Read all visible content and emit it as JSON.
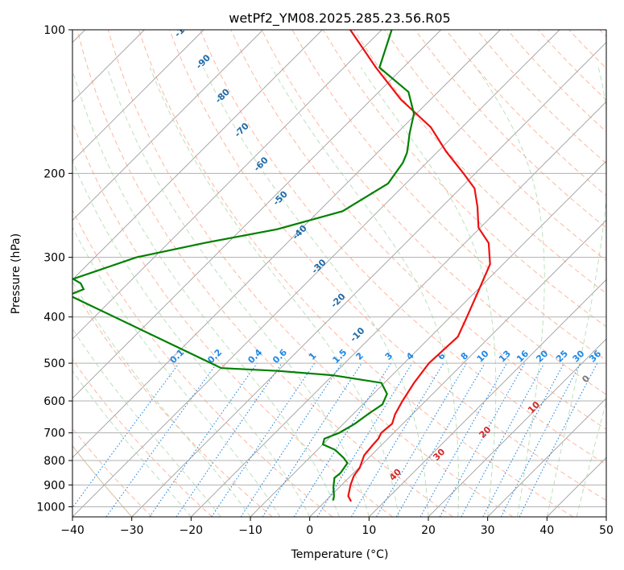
{
  "chart_data": {
    "type": "line",
    "chart_kind": "skew-T log-P sounding",
    "title": "wetPf2_YM08.2025.285.23.56.R05",
    "xlabel": "Temperature (°C)",
    "ylabel": "Pressure (hPa)",
    "xlim": [
      -40,
      50
    ],
    "ylim": [
      1050,
      100
    ],
    "y_scale": "log",
    "x_ticks": [
      -40,
      -30,
      -20,
      -10,
      0,
      10,
      20,
      30,
      40,
      50
    ],
    "y_ticks": [
      100,
      200,
      300,
      400,
      500,
      600,
      700,
      800,
      900,
      1000
    ],
    "grid": true,
    "background_lines": {
      "isotherms_skewed": {
        "color": "#9e9e9e"
      },
      "dry_adiabats": {
        "color": "#ff9470"
      },
      "moist_adiabats": {
        "color": "#a8d8a8"
      },
      "saturation_vapor_pressure": {
        "color": "#d2b48c"
      },
      "mixing_ratio": {
        "color": "#1e88e5"
      }
    },
    "mixing_ratio_labels": [
      "0.1",
      "0.2",
      "0.4",
      "0.6",
      "1",
      "1.5",
      "2",
      "3",
      "4",
      "6",
      "8",
      "10",
      "13",
      "16",
      "20",
      "25",
      "30",
      "36"
    ],
    "theta_labels": [
      "-100",
      "-90",
      "-80",
      "-70",
      "-60",
      "-50",
      "-40",
      "-30",
      "-20",
      "-10"
    ],
    "annotation_labels": [
      "0",
      "10",
      "20",
      "30",
      "40"
    ],
    "series": [
      {
        "name": "",
        "role": "temperature",
        "color": "#ee1111",
        "points": [
          [
            4.4,
            975
          ],
          [
            3.0,
            950
          ],
          [
            1.5,
            900
          ],
          [
            0.5,
            860
          ],
          [
            0.2,
            830
          ],
          [
            -1.2,
            780
          ],
          [
            -1.5,
            740
          ],
          [
            -1.6,
            720
          ],
          [
            -2.1,
            700
          ],
          [
            -1.8,
            670
          ],
          [
            -2.9,
            640
          ],
          [
            -3.9,
            600
          ],
          [
            -5.0,
            550
          ],
          [
            -5.8,
            500
          ],
          [
            -5.4,
            440
          ],
          [
            -7.2,
            400
          ],
          [
            -9.8,
            350
          ],
          [
            -12.2,
            310
          ],
          [
            -16.0,
            280
          ],
          [
            -20.3,
            260
          ],
          [
            -24.0,
            235
          ],
          [
            -27.6,
            215
          ],
          [
            -32.0,
            200
          ],
          [
            -38.6,
            180
          ],
          [
            -45.3,
            160
          ],
          [
            -55.0,
            140
          ],
          [
            -64.6,
            120
          ],
          [
            -75.3,
            100
          ]
        ]
      },
      {
        "name": "",
        "role": "dewpoint",
        "color": "#008000",
        "points": [
          [
            1.2,
            970
          ],
          [
            0.6,
            950
          ],
          [
            -1.0,
            910
          ],
          [
            -2.4,
            870
          ],
          [
            -2.2,
            850
          ],
          [
            -2.7,
            810
          ],
          [
            -4.2,
            790
          ],
          [
            -7.0,
            760
          ],
          [
            -10.0,
            740
          ],
          [
            -10.7,
            720
          ],
          [
            -9.2,
            700
          ],
          [
            -8.1,
            670
          ],
          [
            -7.5,
            640
          ],
          [
            -6.7,
            610
          ],
          [
            -7.7,
            580
          ],
          [
            -10.5,
            550
          ],
          [
            -20.0,
            530
          ],
          [
            -30.0,
            519
          ],
          [
            -40.0,
            512
          ],
          [
            -78.0,
            360
          ],
          [
            -76.5,
            350
          ],
          [
            -78.0,
            340
          ],
          [
            -80.0,
            333
          ],
          [
            -73.0,
            300
          ],
          [
            -64.0,
            280
          ],
          [
            -54.0,
            262
          ],
          [
            -46.0,
            240
          ],
          [
            -43.0,
            210
          ],
          [
            -44.0,
            190
          ],
          [
            -45.0,
            181
          ],
          [
            -46.0,
            175
          ],
          [
            -47.8,
            165
          ],
          [
            -50.4,
            150
          ],
          [
            -55.0,
            135
          ],
          [
            -64.0,
            120
          ],
          [
            -68.3,
            100
          ]
        ]
      }
    ]
  }
}
